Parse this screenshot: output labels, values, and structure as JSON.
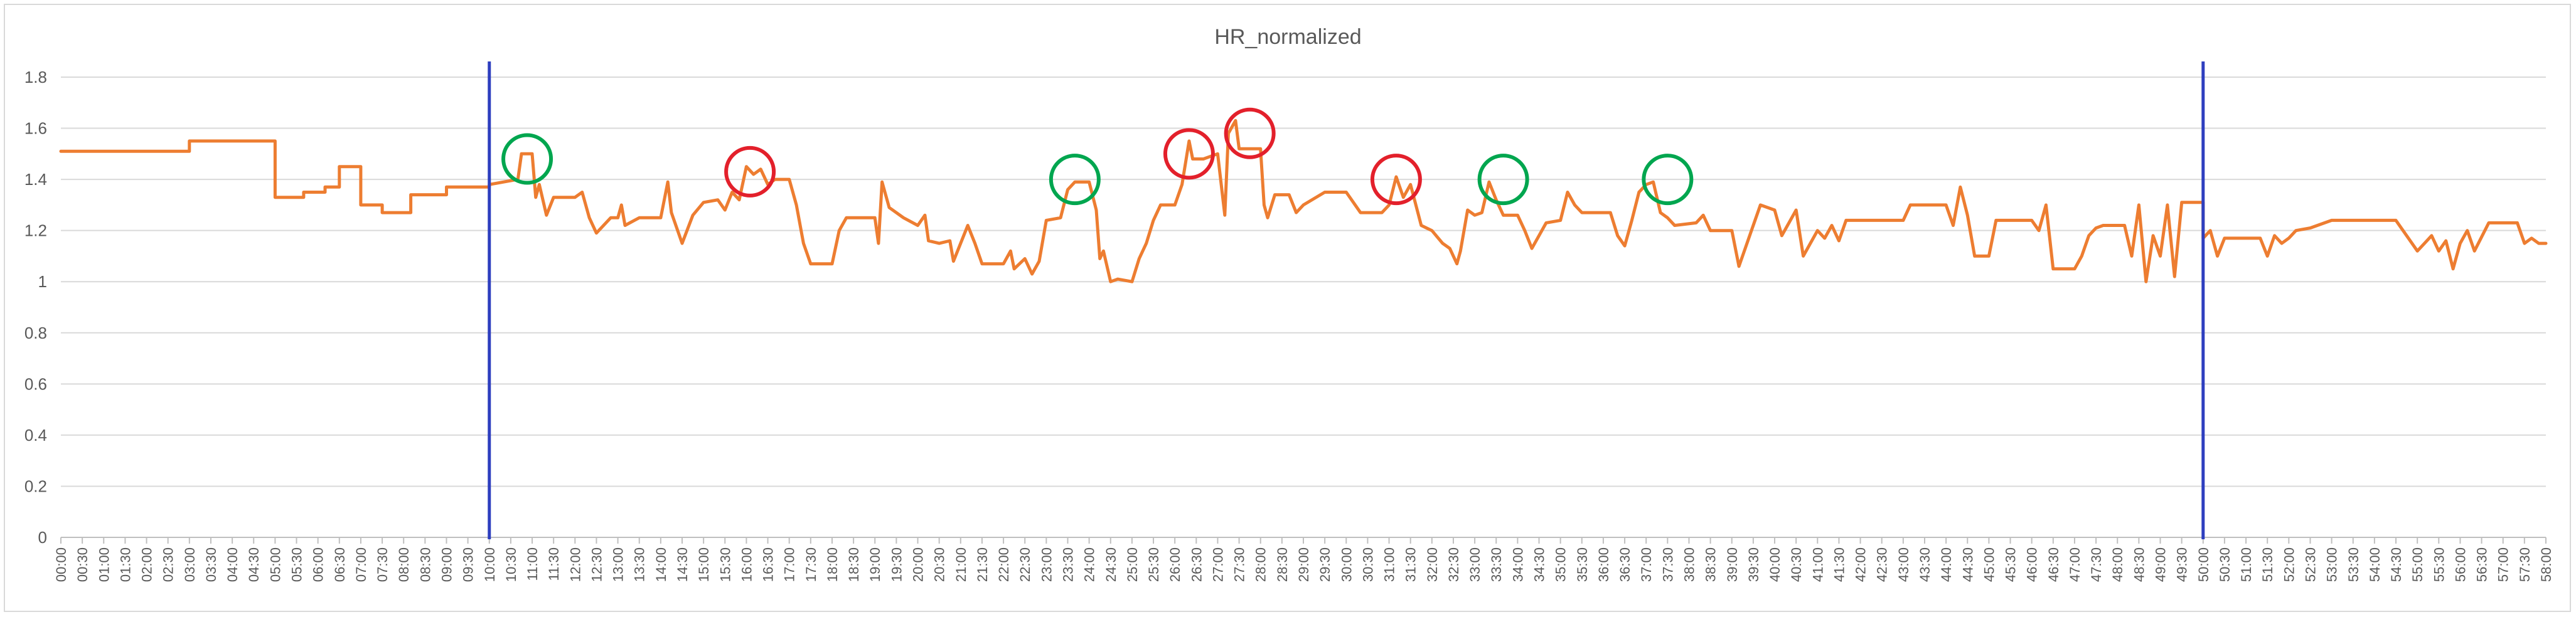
{
  "chart_data": {
    "type": "line",
    "title": "HR_normalized",
    "xlabel": "",
    "ylabel": "",
    "ylim": [
      0,
      1.8
    ],
    "y_ticks": [
      "0",
      "0.2",
      "0.4",
      "0.6",
      "0.8",
      "1",
      "1.2",
      "1.4",
      "1.6",
      "1.8"
    ],
    "x_ticks": [
      "00:00",
      "00:30",
      "01:00",
      "01:30",
      "02:00",
      "02:30",
      "03:00",
      "03:30",
      "04:00",
      "04:30",
      "05:00",
      "05:30",
      "06:00",
      "06:30",
      "07:00",
      "07:30",
      "08:00",
      "08:30",
      "09:00",
      "09:30",
      "10:00",
      "10:30",
      "11:00",
      "11:30",
      "12:00",
      "12:30",
      "13:00",
      "13:30",
      "14:00",
      "14:30",
      "15:00",
      "15:30",
      "16:00",
      "16:30",
      "17:00",
      "17:30",
      "18:00",
      "18:30",
      "19:00",
      "19:30",
      "20:00",
      "20:30",
      "21:00",
      "21:30",
      "22:00",
      "22:30",
      "23:00",
      "23:30",
      "24:00",
      "24:30",
      "25:00",
      "25:30",
      "26:00",
      "26:30",
      "27:00",
      "27:30",
      "28:00",
      "28:30",
      "29:00",
      "29:30",
      "30:00",
      "30:30",
      "31:00",
      "31:30",
      "32:00",
      "32:30",
      "33:00",
      "33:30",
      "34:00",
      "34:30",
      "35:00",
      "35:30",
      "36:00",
      "36:30",
      "37:00",
      "37:30",
      "38:00",
      "38:30",
      "39:00",
      "39:30",
      "40:00",
      "40:30",
      "41:00",
      "41:30",
      "42:00",
      "42:30",
      "43:00",
      "43:30",
      "44:00",
      "44:30",
      "45:00",
      "45:30",
      "46:00",
      "46:30",
      "47:00",
      "47:30",
      "48:00",
      "48:30",
      "49:00",
      "49:30",
      "50:00",
      "50:30",
      "51:00",
      "51:30",
      "52:00",
      "52:30",
      "53:00",
      "53:30",
      "54:00",
      "54:30",
      "55:00",
      "55:30",
      "56:00",
      "56:30",
      "57:00",
      "57:30",
      "58:00"
    ],
    "x_minutes_max": 58,
    "colors": {
      "line": "#ed7d31",
      "marker_line": "#2e3fbf",
      "gridline": "#d9d9d9",
      "axis": "#bfbfbf",
      "text": "#595959",
      "green": "#00a64f",
      "red": "#e3202b"
    },
    "vertical_markers": [
      {
        "x": "10:00"
      },
      {
        "x": "50:00"
      }
    ],
    "series": [
      {
        "values": [
          [
            "00:00",
            1.51
          ],
          [
            "03:00",
            1.51
          ],
          [
            "03:00",
            1.55
          ],
          [
            "05:00",
            1.55
          ],
          [
            "05:00",
            1.33
          ],
          [
            "05:40",
            1.33
          ],
          [
            "05:40",
            1.35
          ],
          [
            "06:10",
            1.35
          ],
          [
            "06:10",
            1.37
          ],
          [
            "06:30",
            1.37
          ],
          [
            "06:30",
            1.45
          ],
          [
            "07:00",
            1.45
          ],
          [
            "07:00",
            1.3
          ],
          [
            "07:30",
            1.3
          ],
          [
            "07:30",
            1.27
          ],
          [
            "08:10",
            1.27
          ],
          [
            "08:10",
            1.34
          ],
          [
            "09:00",
            1.34
          ],
          [
            "09:00",
            1.37
          ],
          [
            "10:00",
            1.37
          ],
          [
            "10:00",
            1.38
          ],
          [
            "10:40",
            1.4
          ],
          [
            "10:45",
            1.5
          ],
          [
            "11:00",
            1.5
          ],
          [
            "11:05",
            1.33
          ],
          [
            "11:10",
            1.38
          ],
          [
            "11:20",
            1.26
          ],
          [
            "11:30",
            1.33
          ],
          [
            "12:00",
            1.33
          ],
          [
            "12:10",
            1.35
          ],
          [
            "12:20",
            1.25
          ],
          [
            "12:30",
            1.19
          ],
          [
            "12:50",
            1.25
          ],
          [
            "13:00",
            1.25
          ],
          [
            "13:05",
            1.3
          ],
          [
            "13:10",
            1.22
          ],
          [
            "13:30",
            1.25
          ],
          [
            "14:00",
            1.25
          ],
          [
            "14:10",
            1.39
          ],
          [
            "14:15",
            1.27
          ],
          [
            "14:30",
            1.15
          ],
          [
            "14:45",
            1.26
          ],
          [
            "15:00",
            1.31
          ],
          [
            "15:20",
            1.32
          ],
          [
            "15:30",
            1.28
          ],
          [
            "15:40",
            1.35
          ],
          [
            "15:50",
            1.32
          ],
          [
            "16:00",
            1.45
          ],
          [
            "16:10",
            1.42
          ],
          [
            "16:20",
            1.44
          ],
          [
            "16:30",
            1.38
          ],
          [
            "16:40",
            1.4
          ],
          [
            "17:00",
            1.4
          ],
          [
            "17:10",
            1.3
          ],
          [
            "17:20",
            1.15
          ],
          [
            "17:30",
            1.07
          ],
          [
            "18:00",
            1.07
          ],
          [
            "18:10",
            1.2
          ],
          [
            "18:20",
            1.25
          ],
          [
            "19:00",
            1.25
          ],
          [
            "19:05",
            1.15
          ],
          [
            "19:10",
            1.39
          ],
          [
            "19:20",
            1.29
          ],
          [
            "19:40",
            1.25
          ],
          [
            "20:00",
            1.22
          ],
          [
            "20:10",
            1.26
          ],
          [
            "20:15",
            1.16
          ],
          [
            "20:30",
            1.15
          ],
          [
            "20:45",
            1.16
          ],
          [
            "20:50",
            1.08
          ],
          [
            "21:00",
            1.15
          ],
          [
            "21:10",
            1.22
          ],
          [
            "21:20",
            1.15
          ],
          [
            "21:30",
            1.07
          ],
          [
            "22:00",
            1.07
          ],
          [
            "22:10",
            1.12
          ],
          [
            "22:15",
            1.05
          ],
          [
            "22:30",
            1.09
          ],
          [
            "22:40",
            1.03
          ],
          [
            "22:50",
            1.08
          ],
          [
            "23:00",
            1.24
          ],
          [
            "23:20",
            1.25
          ],
          [
            "23:30",
            1.36
          ],
          [
            "23:40",
            1.39
          ],
          [
            "24:00",
            1.39
          ],
          [
            "24:10",
            1.28
          ],
          [
            "24:15",
            1.09
          ],
          [
            "24:20",
            1.12
          ],
          [
            "24:30",
            1.0
          ],
          [
            "24:40",
            1.01
          ],
          [
            "25:00",
            1.0
          ],
          [
            "25:10",
            1.09
          ],
          [
            "25:20",
            1.15
          ],
          [
            "25:30",
            1.24
          ],
          [
            "25:40",
            1.3
          ],
          [
            "26:00",
            1.3
          ],
          [
            "26:10",
            1.38
          ],
          [
            "26:20",
            1.55
          ],
          [
            "26:25",
            1.48
          ],
          [
            "26:40",
            1.48
          ],
          [
            "27:00",
            1.5
          ],
          [
            "27:10",
            1.26
          ],
          [
            "27:15",
            1.58
          ],
          [
            "27:25",
            1.63
          ],
          [
            "27:30",
            1.52
          ],
          [
            "28:00",
            1.52
          ],
          [
            "28:05",
            1.3
          ],
          [
            "28:10",
            1.25
          ],
          [
            "28:20",
            1.34
          ],
          [
            "28:40",
            1.34
          ],
          [
            "28:50",
            1.27
          ],
          [
            "29:00",
            1.3
          ],
          [
            "29:30",
            1.35
          ],
          [
            "30:00",
            1.35
          ],
          [
            "30:10",
            1.31
          ],
          [
            "30:20",
            1.27
          ],
          [
            "30:50",
            1.27
          ],
          [
            "31:00",
            1.3
          ],
          [
            "31:10",
            1.41
          ],
          [
            "31:20",
            1.33
          ],
          [
            "31:30",
            1.38
          ],
          [
            "31:45",
            1.22
          ],
          [
            "32:00",
            1.2
          ],
          [
            "32:15",
            1.15
          ],
          [
            "32:25",
            1.13
          ],
          [
            "32:35",
            1.07
          ],
          [
            "32:40",
            1.12
          ],
          [
            "32:50",
            1.28
          ],
          [
            "33:00",
            1.26
          ],
          [
            "33:10",
            1.27
          ],
          [
            "33:20",
            1.39
          ],
          [
            "33:30",
            1.32
          ],
          [
            "33:40",
            1.26
          ],
          [
            "34:00",
            1.26
          ],
          [
            "34:10",
            1.2
          ],
          [
            "34:20",
            1.13
          ],
          [
            "34:30",
            1.18
          ],
          [
            "34:40",
            1.23
          ],
          [
            "35:00",
            1.24
          ],
          [
            "35:10",
            1.35
          ],
          [
            "35:20",
            1.3
          ],
          [
            "35:30",
            1.27
          ],
          [
            "36:10",
            1.27
          ],
          [
            "36:20",
            1.18
          ],
          [
            "36:30",
            1.14
          ],
          [
            "36:40",
            1.24
          ],
          [
            "36:50",
            1.35
          ],
          [
            "37:00",
            1.38
          ],
          [
            "37:10",
            1.39
          ],
          [
            "37:20",
            1.27
          ],
          [
            "37:30",
            1.25
          ],
          [
            "37:40",
            1.22
          ],
          [
            "38:10",
            1.23
          ],
          [
            "38:20",
            1.26
          ],
          [
            "38:30",
            1.2
          ],
          [
            "39:00",
            1.2
          ],
          [
            "39:10",
            1.06
          ],
          [
            "39:30",
            1.22
          ],
          [
            "39:40",
            1.3
          ],
          [
            "40:00",
            1.28
          ],
          [
            "40:10",
            1.18
          ],
          [
            "40:30",
            1.28
          ],
          [
            "40:40",
            1.1
          ],
          [
            "41:00",
            1.2
          ],
          [
            "41:10",
            1.17
          ],
          [
            "41:20",
            1.22
          ],
          [
            "41:30",
            1.16
          ],
          [
            "41:40",
            1.24
          ],
          [
            "43:00",
            1.24
          ],
          [
            "43:10",
            1.3
          ],
          [
            "44:00",
            1.3
          ],
          [
            "44:10",
            1.22
          ],
          [
            "44:20",
            1.37
          ],
          [
            "44:30",
            1.26
          ],
          [
            "44:40",
            1.1
          ],
          [
            "45:00",
            1.1
          ],
          [
            "45:10",
            1.24
          ],
          [
            "46:00",
            1.24
          ],
          [
            "46:10",
            1.2
          ],
          [
            "46:20",
            1.3
          ],
          [
            "46:30",
            1.05
          ],
          [
            "47:00",
            1.05
          ],
          [
            "47:10",
            1.1
          ],
          [
            "47:20",
            1.18
          ],
          [
            "47:30",
            1.21
          ],
          [
            "47:40",
            1.22
          ],
          [
            "48:10",
            1.22
          ],
          [
            "48:20",
            1.1
          ],
          [
            "48:30",
            1.3
          ],
          [
            "48:40",
            1.0
          ],
          [
            "48:50",
            1.18
          ],
          [
            "49:00",
            1.1
          ],
          [
            "49:10",
            1.3
          ],
          [
            "49:20",
            1.02
          ],
          [
            "49:30",
            1.31
          ],
          [
            "50:00",
            1.31
          ],
          [
            "50:00",
            1.17
          ],
          [
            "50:10",
            1.2
          ],
          [
            "50:20",
            1.1
          ],
          [
            "50:30",
            1.17
          ],
          [
            "51:20",
            1.17
          ],
          [
            "51:30",
            1.1
          ],
          [
            "51:40",
            1.18
          ],
          [
            "51:50",
            1.15
          ],
          [
            "52:00",
            1.17
          ],
          [
            "52:10",
            1.2
          ],
          [
            "52:30",
            1.21
          ],
          [
            "53:00",
            1.24
          ],
          [
            "54:30",
            1.24
          ],
          [
            "54:45",
            1.18
          ],
          [
            "55:00",
            1.12
          ],
          [
            "55:10",
            1.15
          ],
          [
            "55:20",
            1.18
          ],
          [
            "55:30",
            1.12
          ],
          [
            "55:40",
            1.16
          ],
          [
            "55:50",
            1.05
          ],
          [
            "56:00",
            1.15
          ],
          [
            "56:10",
            1.2
          ],
          [
            "56:20",
            1.12
          ],
          [
            "56:40",
            1.23
          ],
          [
            "57:20",
            1.23
          ],
          [
            "57:30",
            1.15
          ],
          [
            "57:40",
            1.17
          ],
          [
            "57:50",
            1.15
          ],
          [
            "58:00",
            1.15
          ]
        ]
      }
    ],
    "annotations": [
      {
        "shape": "circle",
        "color": "green",
        "x": "10:53",
        "y": 1.48
      },
      {
        "shape": "circle",
        "color": "red",
        "x": "16:05",
        "y": 1.43
      },
      {
        "shape": "circle",
        "color": "green",
        "x": "23:40",
        "y": 1.4
      },
      {
        "shape": "circle",
        "color": "red",
        "x": "26:20",
        "y": 1.5
      },
      {
        "shape": "circle",
        "color": "red",
        "x": "27:45",
        "y": 1.58
      },
      {
        "shape": "circle",
        "color": "red",
        "x": "31:10",
        "y": 1.4
      },
      {
        "shape": "circle",
        "color": "green",
        "x": "33:40",
        "y": 1.4
      },
      {
        "shape": "circle",
        "color": "green",
        "x": "37:30",
        "y": 1.4
      }
    ]
  }
}
